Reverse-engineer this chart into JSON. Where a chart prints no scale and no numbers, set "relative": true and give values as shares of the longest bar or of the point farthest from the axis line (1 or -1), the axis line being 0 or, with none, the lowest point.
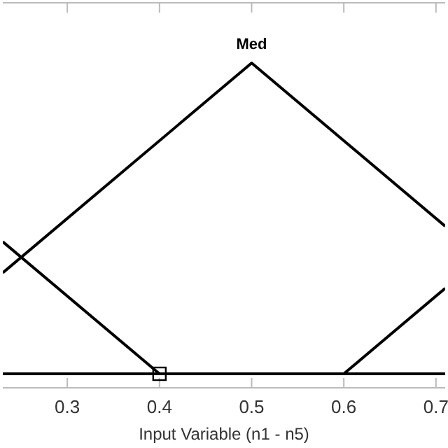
{
  "chart_data": {
    "type": "line",
    "xlabel": "Input Variable (n1 - n5)",
    "xlim": [
      0.23,
      0.71
    ],
    "relative": true,
    "xticks": [
      0.3,
      0.4,
      0.5,
      0.6,
      0.7
    ],
    "tick_labels": "x",
    "grid": false,
    "marker": "none",
    "line_style": "solid",
    "series": [
      {
        "color": "#000000",
        "x": [
          0.23,
          0.4,
          0.71
        ],
        "values": [
          0.425,
          0,
          0
        ]
      },
      {
        "color": "#000000",
        "x": [
          0.23,
          0.5,
          0.71
        ],
        "values": [
          0.325,
          1,
          0.475
        ]
      },
      {
        "color": "#000000",
        "x": [
          0.23,
          0.6,
          0.71
        ],
        "values": [
          0,
          0,
          0.275
        ]
      },
      {
        "type": "scatter",
        "marker": "square",
        "color": "#000000",
        "x": [
          0.4
        ],
        "values": [
          0
        ]
      }
    ],
    "annotations": [
      {
        "text": "Med",
        "x": 0.5,
        "y": 1
      }
    ]
  }
}
